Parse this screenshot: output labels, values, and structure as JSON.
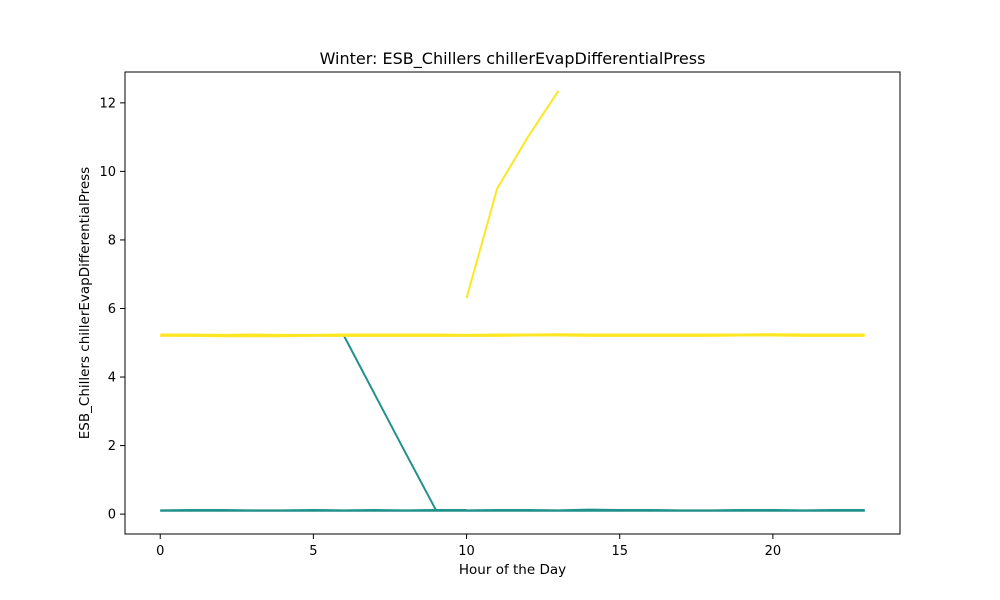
{
  "chart_data": {
    "type": "line",
    "title": "Winter: ESB_Chillers chillerEvapDifferentialPress",
    "xlabel": "Hour of the Day",
    "ylabel": "ESB_Chillers chillerEvapDifferentialPress",
    "xlim": [
      -1.15,
      24.15
    ],
    "ylim": [
      -0.58,
      12.9
    ],
    "xticks": [
      0,
      5,
      10,
      15,
      20
    ],
    "yticks": [
      0,
      2,
      4,
      6,
      8,
      10,
      12
    ],
    "grid": false,
    "legend": "none",
    "colors": {
      "teal": "#21918c",
      "yellow": "#fde725"
    },
    "series": [
      {
        "color": "#21918c",
        "x": [
          0,
          1,
          2,
          3,
          4,
          5,
          6,
          7,
          8,
          9,
          10,
          11,
          12,
          13,
          14,
          15,
          16,
          17,
          18,
          19,
          20,
          21,
          22,
          23
        ],
        "y": [
          0.1,
          0.1,
          0.1,
          0.1,
          0.1,
          0.1,
          0.1,
          0.1,
          0.1,
          0.1,
          0.1,
          0.1,
          0.1,
          0.1,
          0.1,
          0.1,
          0.1,
          0.1,
          0.1,
          0.1,
          0.1,
          0.1,
          0.1,
          0.1
        ]
      },
      {
        "color": "#21918c",
        "x": [
          0,
          1,
          2,
          3,
          4,
          5,
          6,
          7,
          8,
          9,
          10,
          11,
          12,
          13,
          14,
          15,
          16,
          17,
          18,
          19,
          20,
          21,
          22,
          23
        ],
        "y": [
          0.11,
          0.12,
          0.12,
          0.11,
          0.11,
          0.12,
          0.11,
          0.12,
          0.11,
          0.12,
          0.11,
          0.12,
          0.12,
          0.11,
          0.13,
          0.12,
          0.12,
          0.11,
          0.11,
          0.12,
          0.12,
          0.11,
          0.12,
          0.12
        ]
      },
      {
        "color": "#21918c",
        "x": [
          6,
          7,
          8,
          9,
          10
        ],
        "y": [
          5.2,
          3.5,
          1.8,
          0.12,
          0.12
        ]
      },
      {
        "color": "#fde725",
        "x": [
          0,
          1,
          2,
          3,
          4,
          5,
          6,
          7,
          8,
          9,
          10,
          11,
          12,
          13,
          14,
          15,
          16,
          17,
          18,
          19,
          20,
          21,
          22,
          23
        ],
        "y": [
          5.2,
          5.2,
          5.19,
          5.19,
          5.19,
          5.2,
          5.2,
          5.2,
          5.2,
          5.2,
          5.2,
          5.2,
          5.21,
          5.21,
          5.2,
          5.2,
          5.2,
          5.2,
          5.2,
          5.21,
          5.21,
          5.2,
          5.2,
          5.2
        ]
      },
      {
        "color": "#fde725",
        "x": [
          0,
          1,
          2,
          3,
          4,
          5,
          6,
          7,
          8,
          9,
          10,
          11,
          12,
          13,
          14,
          15,
          16,
          17,
          18,
          19,
          20,
          21,
          22,
          23
        ],
        "y": [
          5.24,
          5.24,
          5.23,
          5.24,
          5.23,
          5.23,
          5.24,
          5.24,
          5.24,
          5.24,
          5.23,
          5.24,
          5.24,
          5.25,
          5.24,
          5.24,
          5.24,
          5.24,
          5.24,
          5.24,
          5.25,
          5.24,
          5.24,
          5.24
        ]
      },
      {
        "color": "#fde725",
        "x": [
          10,
          11,
          12,
          13
        ],
        "y": [
          6.3,
          9.5,
          11.0,
          12.35
        ]
      }
    ]
  }
}
